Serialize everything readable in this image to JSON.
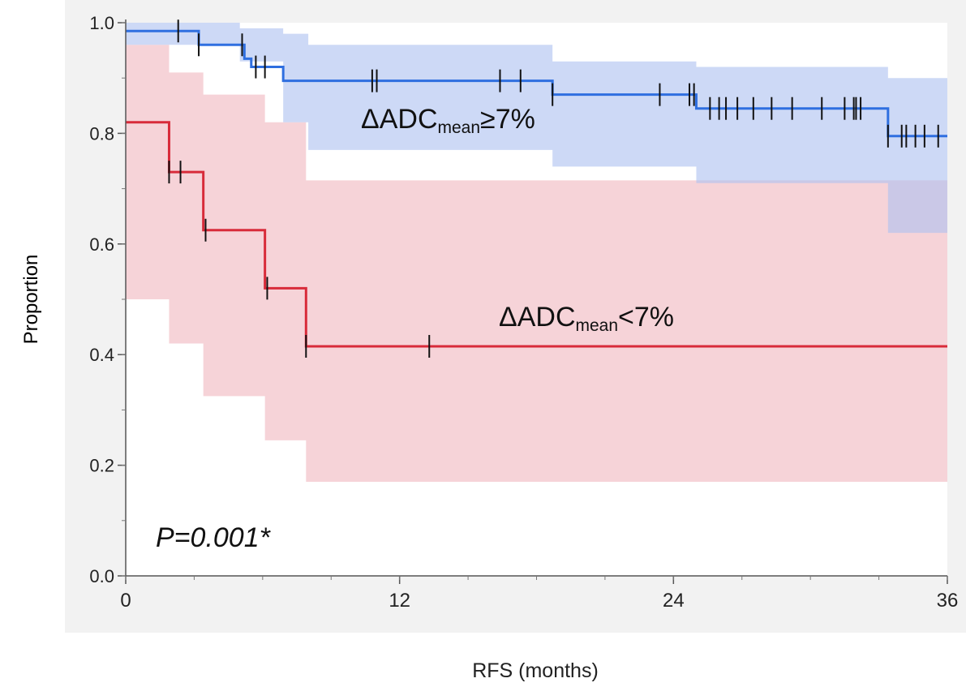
{
  "chart_data": {
    "type": "line",
    "subtype": "kaplan-meier",
    "xlabel": "RFS (months)",
    "ylabel": "Proportion",
    "xlim": [
      0,
      36
    ],
    "ylim": [
      0,
      1
    ],
    "x_ticks": [
      "0",
      "12",
      "24",
      "36"
    ],
    "y_ticks": [
      "0.0",
      "0.2",
      "0.4",
      "0.6",
      "0.8",
      "1.0"
    ],
    "x_minor_step": 3,
    "y_minor_step": 0.1,
    "grid": false,
    "annotation": "P=0.001*",
    "series": [
      {
        "group": "high",
        "label": {
          "base": "ΔADC",
          "sub": "mean",
          "suffix": "≥7%"
        },
        "color": "#2f6fe0",
        "band_color": "#aec2f0",
        "steps": [
          [
            0,
            0.985
          ],
          [
            3.2,
            0.96
          ],
          [
            5.2,
            0.935
          ],
          [
            5.5,
            0.92
          ],
          [
            6.9,
            0.895
          ],
          [
            18.7,
            0.87
          ],
          [
            25,
            0.845
          ],
          [
            33.4,
            0.795
          ],
          [
            36,
            0.795
          ]
        ],
        "ci": [
          [
            0,
            0.96,
            1.0
          ],
          [
            2,
            0.96,
            1.0
          ],
          [
            5,
            0.93,
            0.99
          ],
          [
            6.9,
            0.82,
            0.98
          ],
          [
            8,
            0.77,
            0.96
          ],
          [
            18.7,
            0.74,
            0.93
          ],
          [
            25,
            0.71,
            0.92
          ],
          [
            33.4,
            0.62,
            0.9
          ],
          [
            36,
            0.62,
            0.9
          ]
        ],
        "censor": [
          2.3,
          3.2,
          5.1,
          5.7,
          6.1,
          10.8,
          11.0,
          16.4,
          17.3,
          18.7,
          23.4,
          24.7,
          24.9,
          25.6,
          26.0,
          26.3,
          26.8,
          27.5,
          28.3,
          29.2,
          30.5,
          31.5,
          31.9,
          32.0,
          32.2,
          33.4,
          34.0,
          34.2,
          34.6,
          35.0,
          35.6
        ]
      },
      {
        "group": "low",
        "label": {
          "base": "ΔADC",
          "sub": "mean",
          "suffix": "<7%"
        },
        "color": "#d82b3a",
        "band_color": "#f3c4cb",
        "steps": [
          [
            0,
            0.82
          ],
          [
            1.9,
            0.73
          ],
          [
            3.4,
            0.625
          ],
          [
            6.1,
            0.52
          ],
          [
            7.9,
            0.415
          ],
          [
            36,
            0.415
          ]
        ],
        "ci": [
          [
            0,
            0.5,
            0.96
          ],
          [
            1.9,
            0.42,
            0.91
          ],
          [
            3.4,
            0.325,
            0.87
          ],
          [
            6.1,
            0.245,
            0.82
          ],
          [
            7.9,
            0.17,
            0.715
          ],
          [
            36,
            0.17,
            0.715
          ]
        ],
        "censor": [
          1.9,
          2.4,
          3.5,
          6.2,
          7.9,
          13.3
        ]
      }
    ]
  }
}
